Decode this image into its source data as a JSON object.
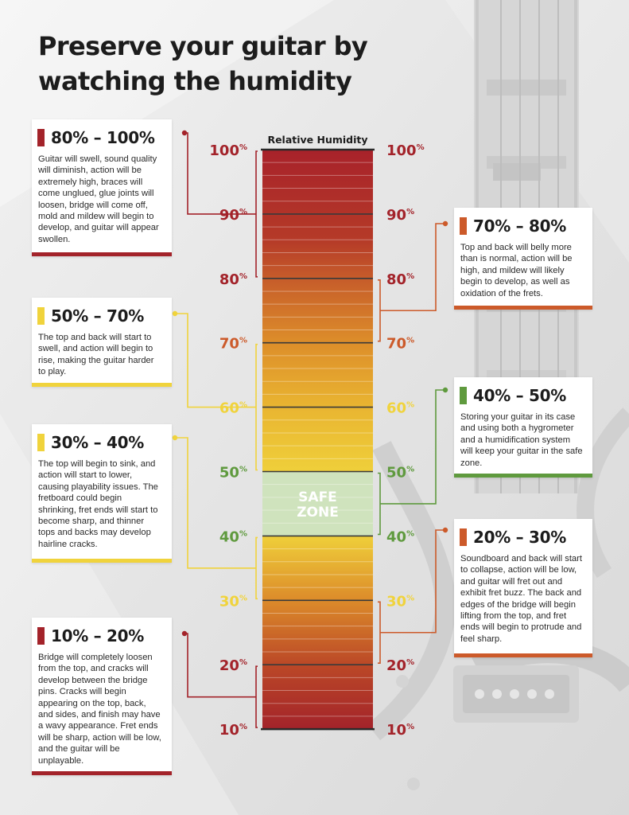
{
  "title": "Preserve your guitar by watching the humidity",
  "colors": {
    "dark_red": "#a3232a",
    "orange": "#cc5a2a",
    "yellow": "#f0d33c",
    "green": "#5f9a3e",
    "safe_zone_fill": "#cfe3bd"
  },
  "chart_data": {
    "type": "gauge",
    "title": "Relative Humidity",
    "unit": "%",
    "scale_min": 10,
    "scale_max": 100,
    "ticks": [
      "10",
      "20",
      "30",
      "40",
      "50",
      "60",
      "70",
      "80",
      "90",
      "100"
    ],
    "safe_zone": {
      "label_line1": "SAFE",
      "label_line2": "ZONE",
      "from": 40,
      "to": 50
    }
  },
  "ranges": [
    {
      "id": "r80_100",
      "side": "left",
      "from": 80,
      "to": 100,
      "color": "#a3232a",
      "label": "80% – 100%",
      "description": "Guitar will swell, sound quality will diminish, action will be extremely high, braces will come unglued, glue joints will loosen, bridge will come off, mold and mildew will begin to develop, and guitar will appear swollen."
    },
    {
      "id": "r70_80",
      "side": "right",
      "from": 70,
      "to": 80,
      "color": "#cc5a2a",
      "label": "70% – 80%",
      "description": "Top and back will belly more than is normal, action will be high, and mildew will likely begin to develop, as well as oxidation of the frets."
    },
    {
      "id": "r50_70",
      "side": "left",
      "from": 50,
      "to": 70,
      "color": "#f0d33c",
      "label": "50% – 70%",
      "description": "The top and back will start to swell, and action will begin to rise, making the guitar harder to play."
    },
    {
      "id": "r40_50",
      "side": "right",
      "from": 40,
      "to": 50,
      "color": "#5f9a3e",
      "label": "40% – 50%",
      "description": "Storing your guitar in its case and using both a hygrometer and a humidification system will keep your guitar in the safe zone."
    },
    {
      "id": "r30_40",
      "side": "left",
      "from": 30,
      "to": 40,
      "color": "#f0d33c",
      "label": "30% – 40%",
      "description": "The top will begin to sink, and action will start to lower, causing playability issues. The fretboard could begin shrinking, fret ends will start to become sharp, and thinner tops and backs may develop hairline cracks."
    },
    {
      "id": "r20_30",
      "side": "right",
      "from": 20,
      "to": 30,
      "color": "#cc5a2a",
      "label": "20% – 30%",
      "description": "Soundboard and back will start to collapse, action will be low, and guitar will fret out and exhibit fret buzz. The back and edges of the bridge will begin lifting from the top, and fret ends will begin to protrude and feel sharp."
    },
    {
      "id": "r10_20",
      "side": "left",
      "from": 10,
      "to": 20,
      "color": "#a3232a",
      "label": "10% – 20%",
      "description": "Bridge will completely loosen from the top, and cracks will develop between the bridge pins. Cracks will begin appearing on the top, back, and sides, and finish may have a wavy appearance. Fret ends will be sharp, action will be low, and the guitar will be unplayable."
    }
  ]
}
